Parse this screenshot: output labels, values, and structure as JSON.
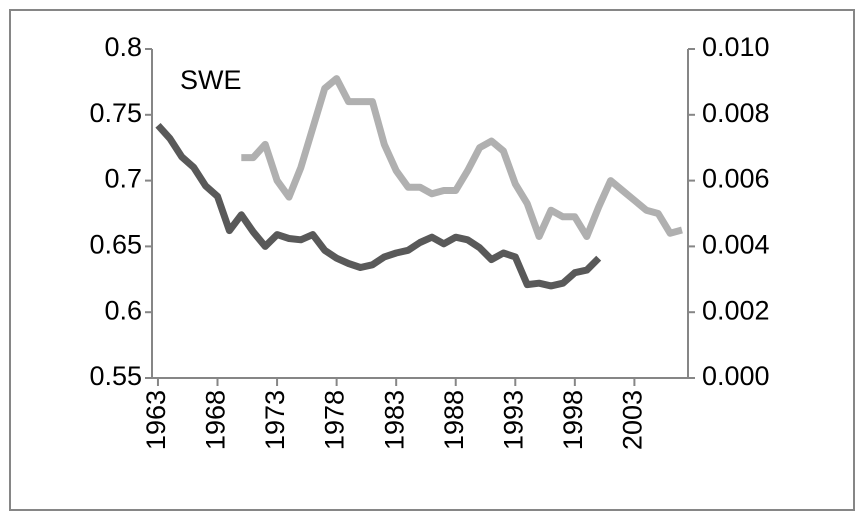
{
  "chart_data": {
    "type": "line",
    "annotation": "SWE",
    "x": [
      1963,
      1964,
      1965,
      1966,
      1967,
      1968,
      1969,
      1970,
      1971,
      1972,
      1973,
      1974,
      1975,
      1976,
      1977,
      1978,
      1979,
      1980,
      1981,
      1982,
      1983,
      1984,
      1985,
      1986,
      1987,
      1988,
      1989,
      1990,
      1991,
      1992,
      1993,
      1994,
      1995,
      1996,
      1997,
      1998,
      1999,
      2000,
      2001,
      2002,
      2003,
      2004,
      2005,
      2006,
      2007
    ],
    "xlim": [
      1962.5,
      2007.5
    ],
    "xticks": [
      1963,
      1968,
      1973,
      1978,
      1983,
      1988,
      1993,
      1998,
      2003
    ],
    "ylim": [
      0.55,
      0.8
    ],
    "yticks": [
      0.55,
      {
        "value": 0.6,
        "label": "0.6"
      },
      0.65,
      {
        "value": 0.7,
        "label": "0.7"
      },
      0.75,
      {
        "value": 0.8,
        "label": "0.8"
      }
    ],
    "y2lim": [
      0,
      0.01
    ],
    "y2ticks": [
      {
        "value": 0,
        "label": "0.000"
      },
      {
        "value": 0.002,
        "label": "0.002"
      },
      {
        "value": 0.004,
        "label": "0.004"
      },
      {
        "value": 0.006,
        "label": "0.006"
      },
      {
        "value": 0.008,
        "label": "0.008"
      },
      {
        "value": 0.01,
        "label": "0.010"
      }
    ],
    "series": [
      {
        "color": "#595959",
        "axis": "y",
        "values": [
          0.742,
          0.732,
          0.718,
          0.71,
          0.696,
          0.688,
          0.662,
          0.674,
          0.661,
          0.65,
          0.659,
          0.656,
          0.655,
          0.659,
          0.647,
          0.641,
          0.637,
          0.634,
          0.636,
          0.642,
          0.645,
          0.647,
          0.653,
          0.657,
          0.652,
          0.657,
          0.655,
          0.649,
          0.64,
          0.645,
          0.642,
          0.621,
          0.622,
          0.62,
          0.622,
          0.63,
          0.632,
          0.641,
          null,
          null,
          null,
          null,
          null,
          null,
          null
        ]
      },
      {
        "color": "#b0b0b0",
        "axis": "y2",
        "values": [
          null,
          null,
          null,
          null,
          null,
          null,
          null,
          0.0067,
          0.0067,
          0.0071,
          0.006,
          0.0055,
          0.0064,
          0.0076,
          0.0088,
          0.0091,
          0.0084,
          0.0084,
          0.0084,
          0.0071,
          0.0063,
          0.0058,
          0.0058,
          0.0056,
          0.0057,
          0.0057,
          0.0063,
          0.007,
          0.0072,
          0.0069,
          0.0059,
          0.0053,
          0.0043,
          0.0051,
          0.0049,
          0.0049,
          0.0043,
          0.0052,
          0.006,
          0.0057,
          0.0054,
          0.0051,
          0.005,
          0.0044,
          0.0045
        ]
      }
    ]
  }
}
